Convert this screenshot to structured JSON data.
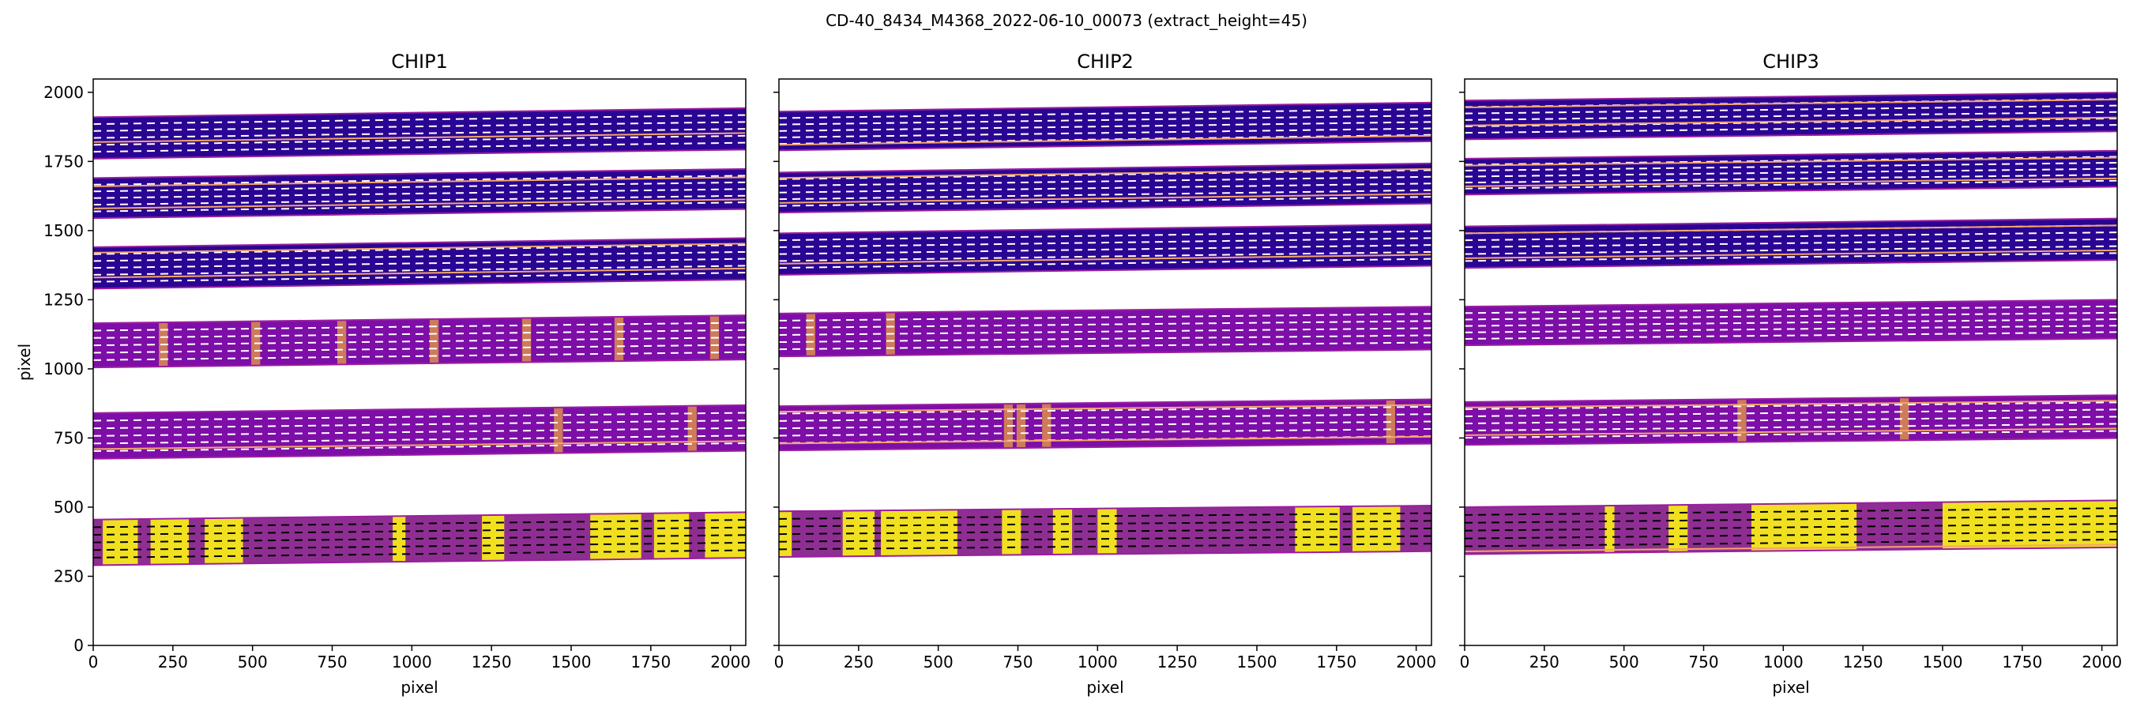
{
  "suptitle": "CD-40_8434_M4368_2022-06-10_00073  (extract_height=45)",
  "colors": {
    "band_low": "#2a0593",
    "band_mid": "#7d0ea7",
    "band_high": "#f0e020",
    "trace_line": "#f5a46a",
    "dash_light": "#ffffff",
    "dash_dark": "#000000",
    "axes": "#000000"
  },
  "chart_data": [
    {
      "type": "heatmap",
      "title": "CHIP1",
      "xlabel": "pixel",
      "ylabel": "pixel",
      "xlim": [
        0,
        2048
      ],
      "ylim": [
        0,
        2048
      ],
      "xticks": [
        0,
        250,
        500,
        750,
        1000,
        1250,
        1500,
        1750,
        2000
      ],
      "yticks": [
        0,
        250,
        500,
        750,
        1000,
        1250,
        1500,
        1750,
        2000
      ],
      "show_yticklabels": true,
      "orders": [
        {
          "bottom_left": 1760,
          "top_left": 1910,
          "slope": 0.016,
          "level": "low",
          "trace": [
            1820
          ]
        },
        {
          "bottom_left": 1545,
          "top_left": 1690,
          "slope": 0.016,
          "level": "low",
          "trace": [
            1580,
            1660
          ]
        },
        {
          "bottom_left": 1290,
          "top_left": 1440,
          "slope": 0.016,
          "level": "low",
          "trace": [
            1330,
            1420
          ]
        },
        {
          "bottom_left": 1005,
          "top_left": 1165,
          "slope": 0.014,
          "level": "mid",
          "trace": [],
          "features": [
            220,
            510,
            780,
            1070,
            1360,
            1650,
            1950
          ]
        },
        {
          "bottom_left": 675,
          "top_left": 840,
          "slope": 0.014,
          "level": "mid",
          "trace": [
            710
          ],
          "features": [
            1460,
            1880
          ]
        },
        {
          "bottom_left": 290,
          "top_left": 455,
          "slope": 0.013,
          "level": "high",
          "trace": [],
          "dark_segments": [
            [
              0,
              30
            ],
            [
              140,
              180
            ],
            [
              300,
              350
            ],
            [
              470,
              940
            ],
            [
              980,
              1220
            ],
            [
              1290,
              1560
            ],
            [
              1720,
              1760
            ],
            [
              1870,
              1920
            ]
          ]
        }
      ]
    },
    {
      "type": "heatmap",
      "title": "CHIP2",
      "xlabel": "pixel",
      "ylabel": "",
      "xlim": [
        0,
        2048
      ],
      "ylim": [
        0,
        2048
      ],
      "xticks": [
        0,
        250,
        500,
        750,
        1000,
        1250,
        1500,
        1750,
        2000
      ],
      "yticks": [
        0,
        250,
        500,
        750,
        1000,
        1250,
        1500,
        1750,
        2000
      ],
      "show_yticklabels": false,
      "orders": [
        {
          "bottom_left": 1790,
          "top_left": 1930,
          "slope": 0.016,
          "level": "low",
          "trace": [
            1810
          ]
        },
        {
          "bottom_left": 1565,
          "top_left": 1710,
          "slope": 0.016,
          "level": "low",
          "trace": [
            1600,
            1690
          ]
        },
        {
          "bottom_left": 1340,
          "top_left": 1490,
          "slope": 0.016,
          "level": "low",
          "trace": [
            1380
          ]
        },
        {
          "bottom_left": 1045,
          "top_left": 1200,
          "slope": 0.012,
          "level": "mid",
          "trace": [],
          "features": [
            100,
            350
          ]
        },
        {
          "bottom_left": 705,
          "top_left": 865,
          "slope": 0.012,
          "level": "mid",
          "trace": [
            730,
            845
          ],
          "features": [
            720,
            760,
            840,
            1920
          ]
        },
        {
          "bottom_left": 320,
          "top_left": 485,
          "slope": 0.01,
          "level": "high",
          "trace": [],
          "dark_segments": [
            [
              40,
              200
            ],
            [
              300,
              320
            ],
            [
              560,
              700
            ],
            [
              760,
              860
            ],
            [
              920,
              1000
            ],
            [
              1060,
              1620
            ],
            [
              1760,
              1800
            ],
            [
              1950,
              2048
            ]
          ]
        }
      ]
    },
    {
      "type": "heatmap",
      "title": "CHIP3",
      "xlabel": "pixel",
      "ylabel": "",
      "xlim": [
        0,
        2048
      ],
      "ylim": [
        0,
        2048
      ],
      "xticks": [
        0,
        250,
        500,
        750,
        1000,
        1250,
        1500,
        1750,
        2000
      ],
      "yticks": [
        0,
        250,
        500,
        750,
        1000,
        1250,
        1500,
        1750,
        2000
      ],
      "show_yticklabels": false,
      "orders": [
        {
          "bottom_left": 1830,
          "top_left": 1970,
          "slope": 0.014,
          "level": "low",
          "trace": [
            1880,
            1945
          ]
        },
        {
          "bottom_left": 1630,
          "top_left": 1760,
          "slope": 0.014,
          "level": "low",
          "trace": [
            1660,
            1735
          ]
        },
        {
          "bottom_left": 1365,
          "top_left": 1515,
          "slope": 0.014,
          "level": "low",
          "trace": [
            1400,
            1490
          ]
        },
        {
          "bottom_left": 1085,
          "top_left": 1225,
          "slope": 0.012,
          "level": "mid",
          "trace": []
        },
        {
          "bottom_left": 725,
          "top_left": 880,
          "slope": 0.012,
          "level": "mid",
          "trace": [
            760,
            860
          ],
          "features": [
            870,
            1380
          ]
        },
        {
          "bottom_left": 330,
          "top_left": 500,
          "slope": 0.012,
          "level": "high",
          "trace": [
            340
          ],
          "dark_segments": [
            [
              0,
              440
            ],
            [
              470,
              640
            ],
            [
              700,
              900
            ],
            [
              1230,
              1500
            ]
          ]
        }
      ]
    }
  ]
}
